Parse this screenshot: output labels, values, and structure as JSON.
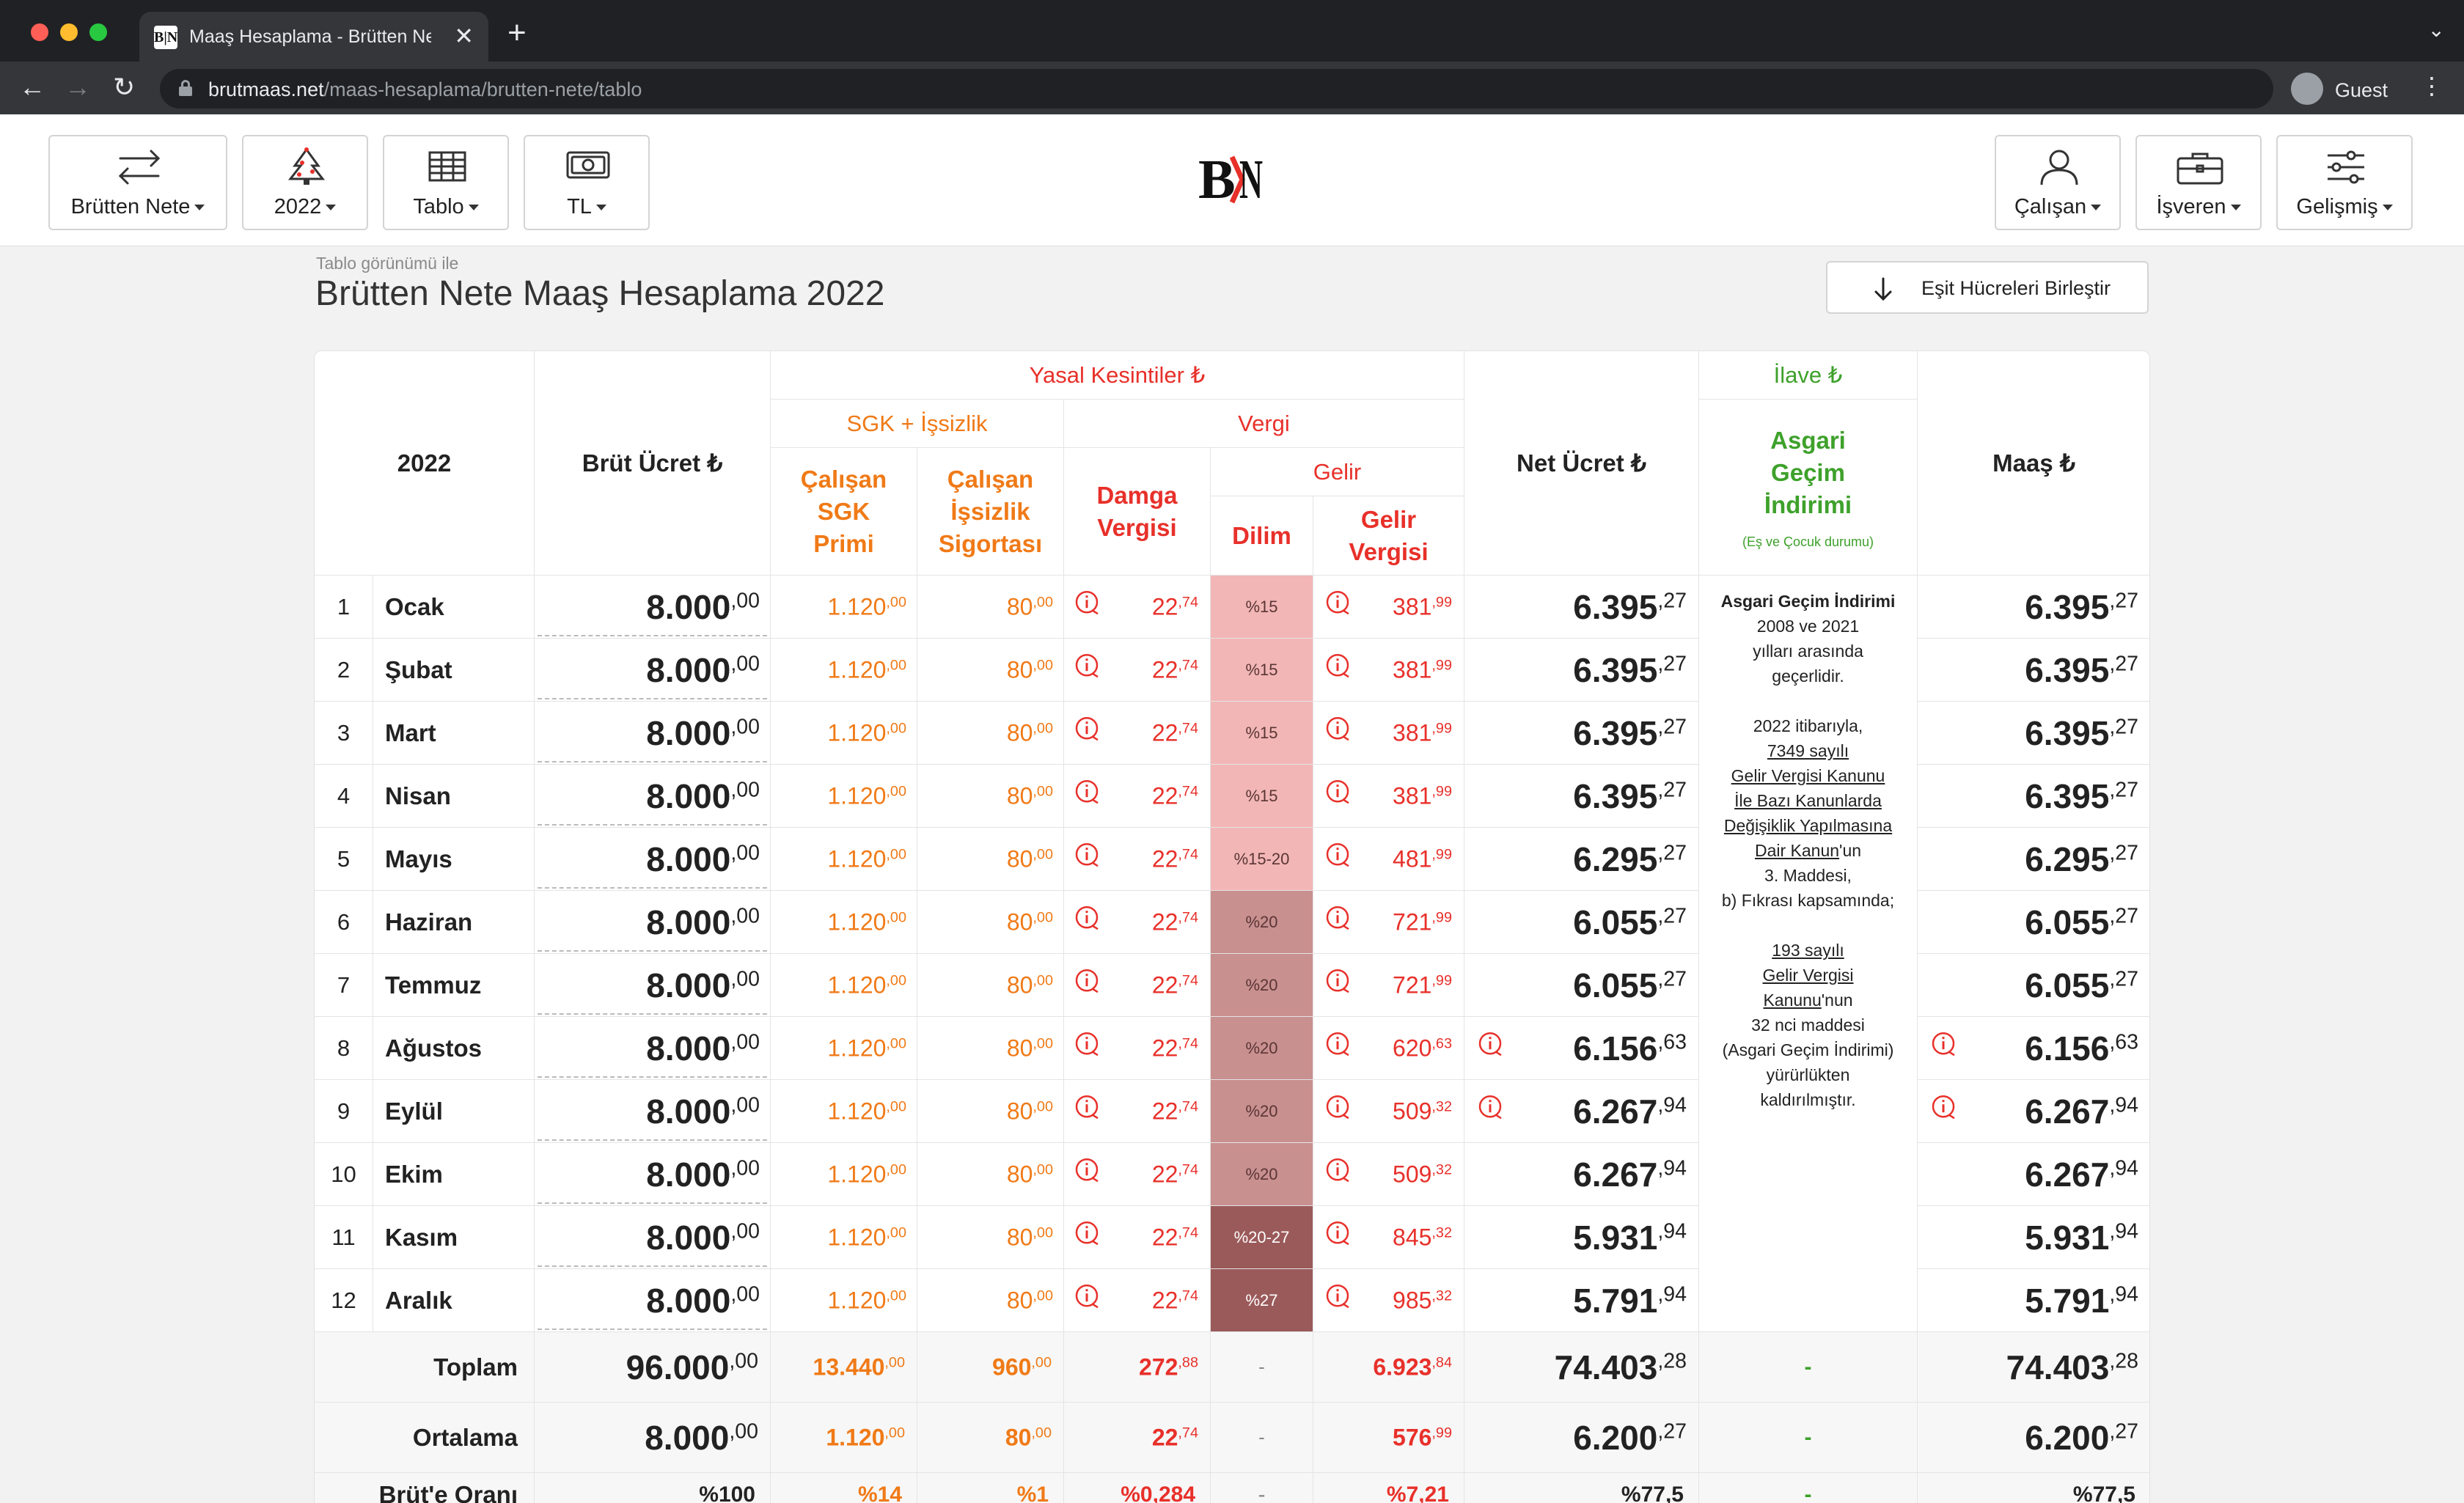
{
  "browser": {
    "tab_title": "Maaş Hesaplama - Brütten Net",
    "favicon_text": "B|N",
    "url_domain": "brutmaas.net",
    "url_path": "/maas-hesaplama/brutten-nete/tablo",
    "profile_label": "Guest"
  },
  "header": {
    "buttons_left": [
      {
        "label": "Brütten Nete",
        "icon": "swap-arrows-icon"
      },
      {
        "label": "2022",
        "icon": "christmas-tree-icon"
      },
      {
        "label": "Tablo",
        "icon": "table-icon"
      },
      {
        "label": "TL",
        "icon": "banknote-icon"
      }
    ],
    "logo_text": "B|N",
    "buttons_right": [
      {
        "label": "Çalışan",
        "icon": "person-icon"
      },
      {
        "label": "İşveren",
        "icon": "briefcase-icon"
      },
      {
        "label": "Gelişmiş",
        "icon": "sliders-icon"
      }
    ]
  },
  "page": {
    "subtitle": "Tablo görünümü ile",
    "title": "Brütten Nete Maaş Hesaplama 2022",
    "merge_button": "Eşit Hücreleri Birleştir"
  },
  "table": {
    "headers": {
      "year": "2022",
      "gross": "Brüt Ücret ₺",
      "legal_deductions": "Yasal Kesintiler ₺",
      "sgk_group": "SGK + İşsizlik",
      "tax_group": "Vergi",
      "employee_sgk": "Çalışan SGK Primi",
      "employee_unemployment": "Çalışan İşsizlik Sigortası",
      "stamp_tax": "Damga Vergisi",
      "income_group": "Gelir",
      "bracket": "Dilim",
      "income_tax": "Gelir Vergisi",
      "net": "Net Ücret ₺",
      "extra": "İlave ₺",
      "agi": "Asgari Geçim İndirimi",
      "agi_sub": "(Eş ve Çocuk durumu)",
      "salary": "Maaş ₺"
    },
    "rows": [
      {
        "no": "1",
        "month": "Ocak",
        "gross": [
          "8.000",
          ",00"
        ],
        "sgk": [
          "1.120",
          ",00"
        ],
        "unemp": [
          "80",
          ",00"
        ],
        "stamp": [
          "22",
          ",74"
        ],
        "bracket": "%15",
        "income": [
          "381",
          ",99"
        ],
        "net": [
          "6.395",
          ",27"
        ],
        "salary": [
          "6.395",
          ",27"
        ],
        "net_info": false
      },
      {
        "no": "2",
        "month": "Şubat",
        "gross": [
          "8.000",
          ",00"
        ],
        "sgk": [
          "1.120",
          ",00"
        ],
        "unemp": [
          "80",
          ",00"
        ],
        "stamp": [
          "22",
          ",74"
        ],
        "bracket": "%15",
        "income": [
          "381",
          ",99"
        ],
        "net": [
          "6.395",
          ",27"
        ],
        "salary": [
          "6.395",
          ",27"
        ],
        "net_info": false
      },
      {
        "no": "3",
        "month": "Mart",
        "gross": [
          "8.000",
          ",00"
        ],
        "sgk": [
          "1.120",
          ",00"
        ],
        "unemp": [
          "80",
          ",00"
        ],
        "stamp": [
          "22",
          ",74"
        ],
        "bracket": "%15",
        "income": [
          "381",
          ",99"
        ],
        "net": [
          "6.395",
          ",27"
        ],
        "salary": [
          "6.395",
          ",27"
        ],
        "net_info": false
      },
      {
        "no": "4",
        "month": "Nisan",
        "gross": [
          "8.000",
          ",00"
        ],
        "sgk": [
          "1.120",
          ",00"
        ],
        "unemp": [
          "80",
          ",00"
        ],
        "stamp": [
          "22",
          ",74"
        ],
        "bracket": "%15",
        "income": [
          "381",
          ",99"
        ],
        "net": [
          "6.395",
          ",27"
        ],
        "salary": [
          "6.395",
          ",27"
        ],
        "net_info": false
      },
      {
        "no": "5",
        "month": "Mayıs",
        "gross": [
          "8.000",
          ",00"
        ],
        "sgk": [
          "1.120",
          ",00"
        ],
        "unemp": [
          "80",
          ",00"
        ],
        "stamp": [
          "22",
          ",74"
        ],
        "bracket": "%15-20",
        "income": [
          "481",
          ",99"
        ],
        "net": [
          "6.295",
          ",27"
        ],
        "salary": [
          "6.295",
          ",27"
        ],
        "net_info": false
      },
      {
        "no": "6",
        "month": "Haziran",
        "gross": [
          "8.000",
          ",00"
        ],
        "sgk": [
          "1.120",
          ",00"
        ],
        "unemp": [
          "80",
          ",00"
        ],
        "stamp": [
          "22",
          ",74"
        ],
        "bracket": "%20",
        "income": [
          "721",
          ",99"
        ],
        "net": [
          "6.055",
          ",27"
        ],
        "salary": [
          "6.055",
          ",27"
        ],
        "net_info": false
      },
      {
        "no": "7",
        "month": "Temmuz",
        "gross": [
          "8.000",
          ",00"
        ],
        "sgk": [
          "1.120",
          ",00"
        ],
        "unemp": [
          "80",
          ",00"
        ],
        "stamp": [
          "22",
          ",74"
        ],
        "bracket": "%20",
        "income": [
          "721",
          ",99"
        ],
        "net": [
          "6.055",
          ",27"
        ],
        "salary": [
          "6.055",
          ",27"
        ],
        "net_info": false
      },
      {
        "no": "8",
        "month": "Ağustos",
        "gross": [
          "8.000",
          ",00"
        ],
        "sgk": [
          "1.120",
          ",00"
        ],
        "unemp": [
          "80",
          ",00"
        ],
        "stamp": [
          "22",
          ",74"
        ],
        "bracket": "%20",
        "income": [
          "620",
          ",63"
        ],
        "net": [
          "6.156",
          ",63"
        ],
        "salary": [
          "6.156",
          ",63"
        ],
        "net_info": true
      },
      {
        "no": "9",
        "month": "Eylül",
        "gross": [
          "8.000",
          ",00"
        ],
        "sgk": [
          "1.120",
          ",00"
        ],
        "unemp": [
          "80",
          ",00"
        ],
        "stamp": [
          "22",
          ",74"
        ],
        "bracket": "%20",
        "income": [
          "509",
          ",32"
        ],
        "net": [
          "6.267",
          ",94"
        ],
        "salary": [
          "6.267",
          ",94"
        ],
        "net_info": true
      },
      {
        "no": "10",
        "month": "Ekim",
        "gross": [
          "8.000",
          ",00"
        ],
        "sgk": [
          "1.120",
          ",00"
        ],
        "unemp": [
          "80",
          ",00"
        ],
        "stamp": [
          "22",
          ",74"
        ],
        "bracket": "%20",
        "income": [
          "509",
          ",32"
        ],
        "net": [
          "6.267",
          ",94"
        ],
        "salary": [
          "6.267",
          ",94"
        ],
        "net_info": false
      },
      {
        "no": "11",
        "month": "Kasım",
        "gross": [
          "8.000",
          ",00"
        ],
        "sgk": [
          "1.120",
          ",00"
        ],
        "unemp": [
          "80",
          ",00"
        ],
        "stamp": [
          "22",
          ",74"
        ],
        "bracket": "%20-27",
        "income": [
          "845",
          ",32"
        ],
        "net": [
          "5.931",
          ",94"
        ],
        "salary": [
          "5.931",
          ",94"
        ],
        "net_info": false
      },
      {
        "no": "12",
        "month": "Aralık",
        "gross": [
          "8.000",
          ",00"
        ],
        "sgk": [
          "1.120",
          ",00"
        ],
        "unemp": [
          "80",
          ",00"
        ],
        "stamp": [
          "22",
          ",74"
        ],
        "bracket": "%27",
        "income": [
          "985",
          ",32"
        ],
        "net": [
          "5.791",
          ",94"
        ],
        "salary": [
          "5.791",
          ",94"
        ],
        "net_info": false
      }
    ],
    "agi_note": {
      "title": "Asgari Geçim İndirimi",
      "l1": "2008 ve 2021",
      "l2": "yılları arasında",
      "l3": "geçerlidir.",
      "l4": "2022 itibarıyla,",
      "link1": "7349 sayılı",
      "link2": "Gelir Vergisi Kanunu",
      "link3": "İle Bazı Kanunlarda",
      "link4": "Değişiklik Yapılmasına",
      "link5": "Dair Kanun",
      "l5suffix": "'un",
      "l6": "3. Maddesi,",
      "l7": "b) Fıkrası kapsamında;",
      "link6": "193 sayılı",
      "link7": "Gelir Vergisi",
      "link8": "Kanunu",
      "l8suffix": "'nun",
      "l9": "32 nci maddesi",
      "l10": "(Asgari Geçim İndirimi)",
      "l11": "yürürlükten",
      "l12": "kaldırılmıştır."
    },
    "totals": {
      "label": "Toplam",
      "gross": [
        "96.000",
        ",00"
      ],
      "sgk": [
        "13.440",
        ",00"
      ],
      "unemp": [
        "960",
        ",00"
      ],
      "stamp": [
        "272",
        ",88"
      ],
      "bracket": "-",
      "income": [
        "6.923",
        ",84"
      ],
      "net": [
        "74.403",
        ",28"
      ],
      "agi": "-",
      "salary": [
        "74.403",
        ",28"
      ]
    },
    "average": {
      "label": "Ortalama",
      "gross": [
        "8.000",
        ",00"
      ],
      "sgk": [
        "1.120",
        ",00"
      ],
      "unemp": [
        "80",
        ",00"
      ],
      "stamp": [
        "22",
        ",74"
      ],
      "bracket": "-",
      "income": [
        "576",
        ",99"
      ],
      "net": [
        "6.200",
        ",27"
      ],
      "agi": "-",
      "salary": [
        "6.200",
        ",27"
      ]
    },
    "ratio": {
      "label": "Brüt'e Oranı",
      "gross": "%100",
      "sgk": "%14",
      "unemp": "%1",
      "stamp": "%0,284",
      "bracket": "-",
      "income": "%7,21",
      "net": "%77,5",
      "agi": "-",
      "salary": "%77,5"
    }
  },
  "colors": {
    "red": "#e8302a",
    "orange": "#f07a17",
    "green": "#3ea12b",
    "bracket_15": "#f2b6b6",
    "bracket_20": "#c99090",
    "bracket_27": "#9b5a5a"
  }
}
